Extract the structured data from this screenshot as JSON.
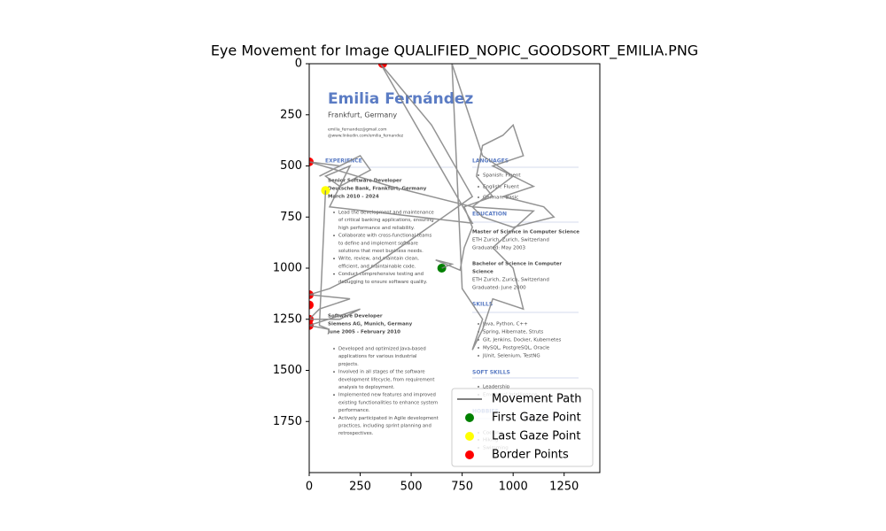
{
  "chart_data": {
    "type": "line",
    "title": "Eye Movement for Image QUALIFIED_NOPIC_GOODSORT_EMILIA.PNG",
    "xlim": [
      0,
      1425
    ],
    "ylim": [
      2000,
      0
    ],
    "xticks": [
      0,
      250,
      500,
      750,
      1000,
      1250
    ],
    "yticks": [
      0,
      250,
      500,
      750,
      1000,
      1250,
      1500,
      1750
    ],
    "legend": "lower right",
    "series": [
      {
        "name": "Movement Path",
        "color": "#808080",
        "mode": "line",
        "x": [
          650,
          700,
          620,
          740,
          760,
          800,
          760,
          900,
          820,
          850,
          950,
          1000,
          1050,
          900,
          1100,
          950,
          1150,
          1200,
          1000,
          850,
          800,
          1100,
          900,
          1000,
          1050,
          900,
          850,
          800,
          850,
          750,
          700,
          850,
          1000,
          800,
          400,
          0,
          150,
          50,
          250,
          300,
          150,
          80,
          200,
          100,
          800,
          350,
          600,
          800,
          300,
          100,
          0,
          200,
          50,
          0,
          150,
          250,
          0,
          100,
          50,
          80
        ],
        "y": [
          1000,
          980,
          960,
          1010,
          900,
          800,
          700,
          650,
          550,
          400,
          350,
          300,
          450,
          500,
          600,
          650,
          700,
          750,
          800,
          750,
          700,
          720,
          900,
          1000,
          1200,
          1150,
          1300,
          1400,
          1250,
          1100,
          0,
          450,
          550,
          700,
          600,
          480,
          500,
          550,
          450,
          520,
          600,
          550,
          500,
          700,
          780,
          0,
          300,
          650,
          1000,
          1100,
          1130,
          1150,
          1200,
          1250,
          1250,
          1200,
          1280,
          1300,
          1280,
          620
        ]
      },
      {
        "name": "First Gaze Point",
        "color": "green",
        "mode": "scatter",
        "x": [
          650
        ],
        "y": [
          1000
        ]
      },
      {
        "name": "Last Gaze Point",
        "color": "yellow",
        "mode": "scatter",
        "x": [
          80
        ],
        "y": [
          620
        ]
      },
      {
        "name": "Border Points",
        "color": "red",
        "mode": "scatter",
        "x": [
          360,
          0,
          0,
          0,
          0,
          0
        ],
        "y": [
          0,
          480,
          1130,
          1180,
          1250,
          1280
        ]
      }
    ]
  },
  "background_image": {
    "lines": [
      "Emilia Fernández",
      "Frankfurt, Germany",
      "emilia_fernandez@gmail.com",
      "@www.linkedin.com/emilia_fernandez",
      "EXPERIENCE",
      "Senior Software Developer",
      "Deutsche Bank, Frankfurt, Germany",
      "March 2010 - 2024",
      "Lead the development and maintenance",
      "of critical banking applications, ensuring",
      "high performance and reliability.",
      "Collaborate with cross-functional teams",
      "to define and implement software",
      "solutions that meet business needs.",
      "Write, review, and maintain clean,",
      "efficient, and maintainable code.",
      "Conduct comprehensive testing and",
      "debugging to ensure software quality.",
      "Software Developer",
      "Siemens AG, Munich, Germany",
      "June 2005 - February 2010",
      "Developed and optimized Java-based",
      "applications for various industrial",
      "projects.",
      "Involved in all stages of the software",
      "development lifecycle, from requirement",
      "analysis to deployment.",
      "Implemented new features and improved",
      "existing functionalities to enhance system",
      "performance.",
      "Actively participated in Agile development",
      "practices, including sprint planning and",
      "retrospectives.",
      "LANGUAGES",
      "Spanish: Fluent",
      "English: Fluent",
      "German: Basic",
      "EDUCATION",
      "Master of Science in Computer Science",
      "ETH Zurich, Zurich, Switzerland",
      "Graduated: May 2003",
      "Bachelor of Science in Computer",
      "Science",
      "ETH Zurich, Zurich, Switzerland",
      "Graduated: June 2000",
      "SKILLS",
      "Java, Python, C++",
      "Spring, Hibernate, Struts",
      "Git, Jenkins, Docker, Kubernetes",
      "MySQL, PostgreSQL, Oracle",
      "JUnit, Selenium, TestNG",
      "SOFT SKILLS",
      "Leadership",
      "Emotional Intelligence",
      "HOBBIES",
      "Cooking",
      "Hiking",
      "Swimming"
    ]
  }
}
